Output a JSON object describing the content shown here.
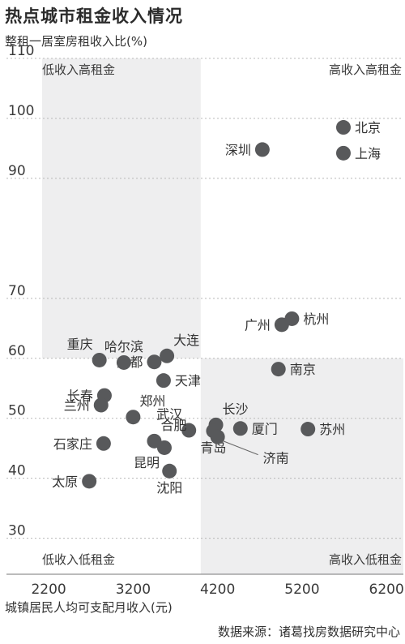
{
  "chart_data": {
    "type": "scatter",
    "title": "热点城市租金收入情况",
    "ylabel": "整租一居室房租收入比(%)",
    "xlabel": "城镇居民人均可支配月收入(元)",
    "source": "数据来源：诸葛找房数据研究中心",
    "xlim": [
      1700,
      6400
    ],
    "ylim": [
      24,
      110
    ],
    "xticks": [
      2200,
      3200,
      4200,
      5200,
      6200
    ],
    "yticks": [
      30,
      40,
      50,
      60,
      70,
      90,
      100,
      110
    ],
    "grid": true,
    "quadrant_split": {
      "x": 4000,
      "y": 60
    },
    "quadrants": [
      {
        "label": "低收入高租金",
        "position": "top-left",
        "shaded": true
      },
      {
        "label": "高收入高租金",
        "position": "top-right",
        "shaded": false
      },
      {
        "label": "低收入低租金",
        "position": "bottom-left",
        "shaded": false
      },
      {
        "label": "高收入低租金",
        "position": "bottom-right",
        "shaded": true
      }
    ],
    "point_color": "#58595b",
    "points": [
      {
        "city": "北京",
        "x": 5690,
        "y": 98.5,
        "label_pos": "right"
      },
      {
        "city": "上海",
        "x": 5690,
        "y": 94.2,
        "label_pos": "right"
      },
      {
        "city": "深圳",
        "x": 4730,
        "y": 94.8,
        "label_pos": "left"
      },
      {
        "city": "杭州",
        "x": 5080,
        "y": 66.6,
        "label_pos": "right"
      },
      {
        "city": "广州",
        "x": 4960,
        "y": 65.6,
        "label_pos": "left"
      },
      {
        "city": "南京",
        "x": 4920,
        "y": 58.2,
        "label_pos": "right"
      },
      {
        "city": "苏州",
        "x": 5270,
        "y": 48.2,
        "label_pos": "right"
      },
      {
        "city": "厦门",
        "x": 4470,
        "y": 48.3,
        "label_pos": "right"
      },
      {
        "city": "长沙",
        "x": 4180,
        "y": 48.9,
        "label_pos": "above-right"
      },
      {
        "city": "青岛",
        "x": 4150,
        "y": 47.9,
        "label_pos": "below"
      },
      {
        "city": "济南",
        "x": 4200,
        "y": 46.9,
        "label_pos": "below-right"
      },
      {
        "city": "武汉",
        "x": 3860,
        "y": 48.0,
        "label_pos": "above-left"
      },
      {
        "city": "大连",
        "x": 3600,
        "y": 60.4,
        "label_pos": "above-right"
      },
      {
        "city": "成都",
        "x": 3450,
        "y": 59.4,
        "label_pos": "left"
      },
      {
        "city": "天津",
        "x": 3560,
        "y": 56.3,
        "label_pos": "right"
      },
      {
        "city": "哈尔滨",
        "x": 3090,
        "y": 59.3,
        "label_pos": "above"
      },
      {
        "city": "重庆",
        "x": 2800,
        "y": 59.7,
        "label_pos": "above-left"
      },
      {
        "city": "长春",
        "x": 2860,
        "y": 53.8,
        "label_pos": "left"
      },
      {
        "city": "兰州",
        "x": 2820,
        "y": 52.2,
        "label_pos": "left"
      },
      {
        "city": "郑州",
        "x": 3200,
        "y": 50.2,
        "label_pos": "above-right"
      },
      {
        "city": "合肥",
        "x": 3450,
        "y": 46.2,
        "label_pos": "above-right"
      },
      {
        "city": "昆明",
        "x": 3570,
        "y": 45.1,
        "label_pos": "below-left"
      },
      {
        "city": "石家庄",
        "x": 2850,
        "y": 45.8,
        "label_pos": "left"
      },
      {
        "city": "沈阳",
        "x": 3630,
        "y": 41.2,
        "label_pos": "below"
      },
      {
        "city": "太原",
        "x": 2680,
        "y": 39.5,
        "label_pos": "left"
      }
    ]
  }
}
